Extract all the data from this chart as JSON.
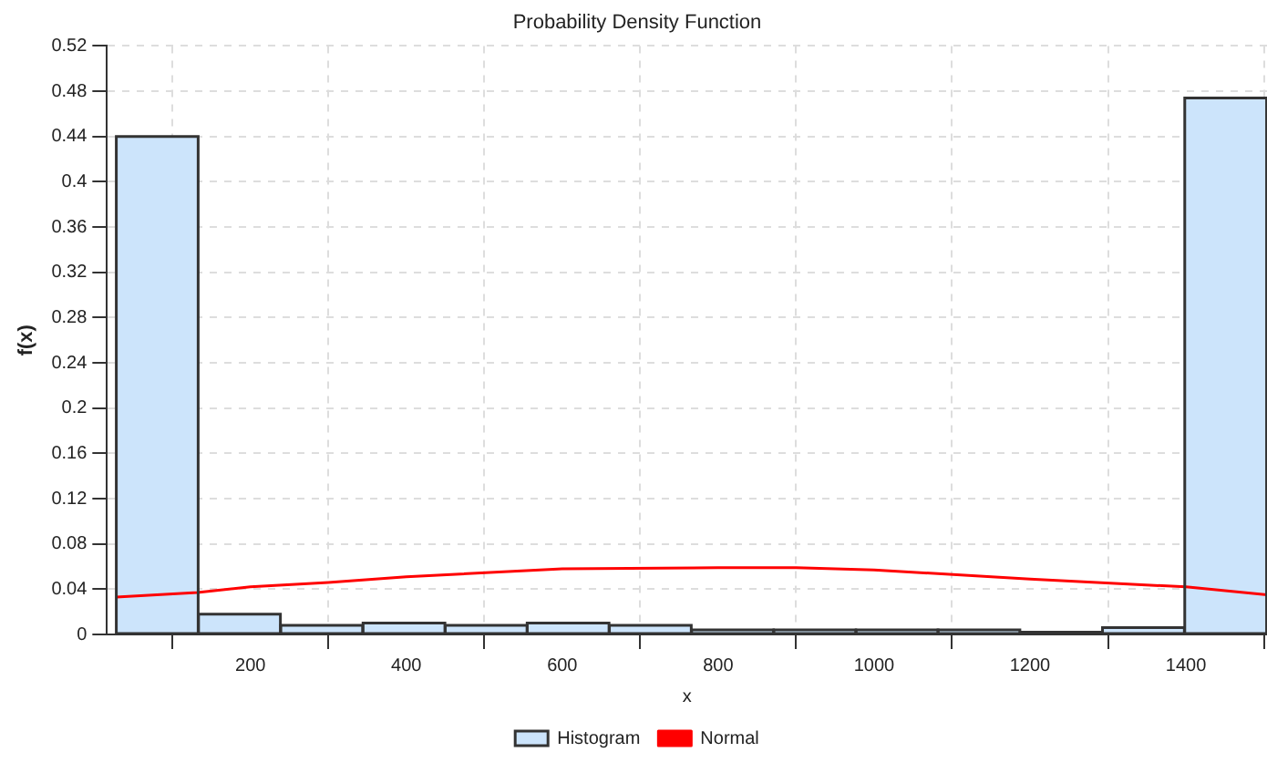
{
  "chart_data": {
    "type": "histogram",
    "title": "Probability Density Function",
    "xlabel": "x",
    "ylabel": "f(x)",
    "series": [
      {
        "name": "Histogram",
        "type": "histogram",
        "color": "#cce4fb",
        "bins": [
          28,
          133,
          239,
          344,
          450,
          555,
          660,
          766,
          871,
          977,
          1082,
          1187,
          1293,
          1398,
          1504
        ],
        "values": [
          0.44,
          0.018,
          0.008,
          0.01,
          0.008,
          0.01,
          0.008,
          0.004,
          0.004,
          0.004,
          0.004,
          0.002,
          0.006,
          0.474
        ]
      },
      {
        "name": "Normal",
        "type": "line",
        "color": "#ff0000",
        "x": [
          28,
          132,
          200,
          300,
          400,
          600,
          800,
          900,
          1000,
          1200,
          1400,
          1504
        ],
        "values": [
          0.033,
          0.037,
          0.042,
          0.046,
          0.051,
          0.058,
          0.059,
          0.059,
          0.057,
          0.049,
          0.042,
          0.035
        ]
      }
    ],
    "xlim": [
      16,
      1504
    ],
    "xticks": [
      200,
      400,
      600,
      800,
      1000,
      1200,
      1400
    ],
    "ylim": [
      0,
      0.52
    ],
    "yticks": [
      0,
      0.04,
      0.08,
      0.12,
      0.16,
      0.2,
      0.24,
      0.28,
      0.32,
      0.36,
      0.4,
      0.44,
      0.48,
      0.52
    ],
    "grid": true,
    "legend": "bottom",
    "marker": "none",
    "line_style": "solid"
  }
}
